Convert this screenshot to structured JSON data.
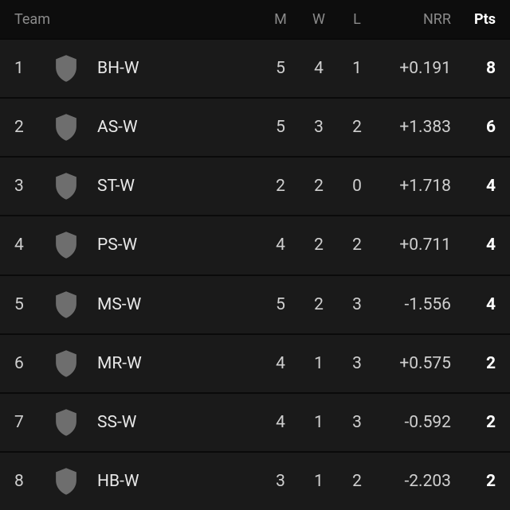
{
  "colors": {
    "header_bg": "#0d0d0d",
    "row_bg": "#1a1a1a",
    "row_border": "#0a0a0a",
    "header_text": "#8a8a8a",
    "primary_text": "#e8e8e8",
    "secondary_text": "#cfcfcf",
    "shield_fill": "#6e6e6e"
  },
  "headers": {
    "team": "Team",
    "m": "M",
    "w": "W",
    "l": "L",
    "nrr": "NRR",
    "pts": "Pts"
  },
  "rows": [
    {
      "rank": "1",
      "team": "BH-W",
      "m": "5",
      "w": "4",
      "l": "1",
      "nrr": "+0.191",
      "pts": "8"
    },
    {
      "rank": "2",
      "team": "AS-W",
      "m": "5",
      "w": "3",
      "l": "2",
      "nrr": "+1.383",
      "pts": "6"
    },
    {
      "rank": "3",
      "team": "ST-W",
      "m": "2",
      "w": "2",
      "l": "0",
      "nrr": "+1.718",
      "pts": "4"
    },
    {
      "rank": "4",
      "team": "PS-W",
      "m": "4",
      "w": "2",
      "l": "2",
      "nrr": "+0.711",
      "pts": "4"
    },
    {
      "rank": "5",
      "team": "MS-W",
      "m": "5",
      "w": "2",
      "l": "3",
      "nrr": "-1.556",
      "pts": "4"
    },
    {
      "rank": "6",
      "team": "MR-W",
      "m": "4",
      "w": "1",
      "l": "3",
      "nrr": "+0.575",
      "pts": "2"
    },
    {
      "rank": "7",
      "team": "SS-W",
      "m": "4",
      "w": "1",
      "l": "3",
      "nrr": "-0.592",
      "pts": "2"
    },
    {
      "rank": "8",
      "team": "HB-W",
      "m": "3",
      "w": "1",
      "l": "2",
      "nrr": "-2.203",
      "pts": "2"
    }
  ]
}
